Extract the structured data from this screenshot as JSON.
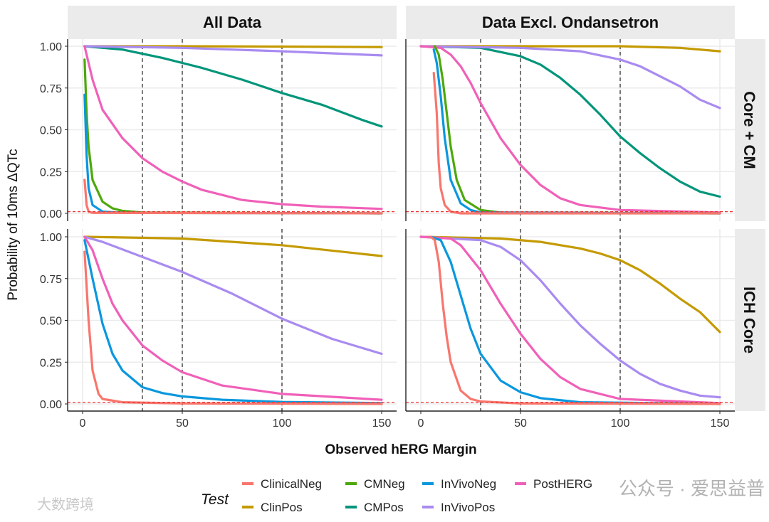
{
  "chart_data": {
    "type": "line",
    "xlabel": "Observed hERG Margin",
    "ylabel": "Probability of 10ms ΔQTc",
    "xlim": [
      0,
      150
    ],
    "ylim": [
      0,
      1
    ],
    "x_ticks": [
      "0",
      "50",
      "100",
      "150"
    ],
    "x_tick_values": [
      0,
      50,
      100,
      150
    ],
    "y_ticks": [
      "0.00",
      "0.25",
      "0.50",
      "0.75",
      "1.00"
    ],
    "y_tick_values": [
      0,
      0.25,
      0.5,
      0.75,
      1
    ],
    "vlines": [
      30,
      50,
      100
    ],
    "hline": 0.01,
    "grid": true,
    "column_labels": [
      "All Data",
      "Data Excl. Ondansetron"
    ],
    "row_labels": [
      "Core + CM",
      "ICH Core"
    ],
    "legend": {
      "title": "Test",
      "placement": "bottom",
      "entries": [
        "ClinicalNeg",
        "ClinPos",
        "CMNeg",
        "CMPos",
        "InVivoNeg",
        "InVivoPos",
        "PostHERG"
      ]
    },
    "colors": {
      "ClinicalNeg": "#F8766D",
      "ClinPos": "#C49A00",
      "CMNeg": "#4DA80C",
      "CMPos": "#00957A",
      "InVivoNeg": "#0A97DE",
      "InVivoPos": "#A98BF0",
      "PostHERG": "#F060B8"
    },
    "panels": [
      {
        "row": 0,
        "col": 0,
        "series": {
          "ClinPos": [
            [
              1,
              1
            ],
            [
              50,
              1
            ],
            [
              100,
              0.998
            ],
            [
              150,
              0.995
            ]
          ],
          "CMPos": [
            [
              1,
              1
            ],
            [
              20,
              0.98
            ],
            [
              40,
              0.93
            ],
            [
              50,
              0.9
            ],
            [
              60,
              0.87
            ],
            [
              80,
              0.8
            ],
            [
              100,
              0.72
            ],
            [
              120,
              0.65
            ],
            [
              140,
              0.56
            ],
            [
              150,
              0.52
            ]
          ],
          "InVivoPos": [
            [
              1,
              1
            ],
            [
              50,
              0.99
            ],
            [
              100,
              0.97
            ],
            [
              150,
              0.945
            ]
          ],
          "PostHERG": [
            [
              1,
              1
            ],
            [
              5,
              0.8
            ],
            [
              10,
              0.62
            ],
            [
              20,
              0.45
            ],
            [
              30,
              0.33
            ],
            [
              40,
              0.25
            ],
            [
              50,
              0.19
            ],
            [
              60,
              0.14
            ],
            [
              80,
              0.08
            ],
            [
              100,
              0.055
            ],
            [
              120,
              0.04
            ],
            [
              150,
              0.027
            ]
          ],
          "CMNeg": [
            [
              1,
              0.92
            ],
            [
              2,
              0.6
            ],
            [
              3,
              0.4
            ],
            [
              5,
              0.2
            ],
            [
              10,
              0.07
            ],
            [
              15,
              0.03
            ],
            [
              20,
              0.015
            ],
            [
              30,
              0.005
            ],
            [
              150,
              0
            ]
          ],
          "InVivoNeg": [
            [
              1,
              0.71
            ],
            [
              2,
              0.35
            ],
            [
              3,
              0.15
            ],
            [
              5,
              0.05
            ],
            [
              10,
              0.01
            ],
            [
              20,
              0.003
            ],
            [
              150,
              0
            ]
          ],
          "ClinicalNeg": [
            [
              1,
              0.2
            ],
            [
              2,
              0.05
            ],
            [
              3,
              0.01
            ],
            [
              5,
              0.003
            ],
            [
              150,
              0
            ]
          ]
        }
      },
      {
        "row": 0,
        "col": 1,
        "series": {
          "ClinPos": [
            [
              0,
              1
            ],
            [
              100,
              1
            ],
            [
              130,
              0.99
            ],
            [
              150,
              0.97
            ]
          ],
          "CMPos": [
            [
              0,
              1
            ],
            [
              30,
              0.99
            ],
            [
              50,
              0.94
            ],
            [
              60,
              0.89
            ],
            [
              70,
              0.81
            ],
            [
              80,
              0.71
            ],
            [
              90,
              0.59
            ],
            [
              100,
              0.46
            ],
            [
              110,
              0.36
            ],
            [
              120,
              0.27
            ],
            [
              130,
              0.19
            ],
            [
              140,
              0.13
            ],
            [
              150,
              0.1
            ]
          ],
          "InVivoPos": [
            [
              0,
              1
            ],
            [
              50,
              0.99
            ],
            [
              80,
              0.97
            ],
            [
              100,
              0.92
            ],
            [
              110,
              0.88
            ],
            [
              120,
              0.82
            ],
            [
              130,
              0.76
            ],
            [
              140,
              0.68
            ],
            [
              150,
              0.63
            ]
          ],
          "PostHERG": [
            [
              0,
              1
            ],
            [
              10,
              0.99
            ],
            [
              15,
              0.95
            ],
            [
              20,
              0.88
            ],
            [
              25,
              0.78
            ],
            [
              30,
              0.66
            ],
            [
              40,
              0.45
            ],
            [
              50,
              0.29
            ],
            [
              60,
              0.17
            ],
            [
              70,
              0.09
            ],
            [
              80,
              0.05
            ],
            [
              100,
              0.02
            ],
            [
              150,
              0.005
            ]
          ],
          "CMNeg": [
            [
              7,
              1
            ],
            [
              9,
              0.95
            ],
            [
              11,
              0.8
            ],
            [
              13,
              0.6
            ],
            [
              15,
              0.4
            ],
            [
              18,
              0.2
            ],
            [
              22,
              0.08
            ],
            [
              30,
              0.02
            ],
            [
              40,
              0.005
            ],
            [
              150,
              0
            ]
          ],
          "InVivoNeg": [
            [
              6.5,
              0.98
            ],
            [
              8,
              0.9
            ],
            [
              10,
              0.7
            ],
            [
              12,
              0.45
            ],
            [
              15,
              0.2
            ],
            [
              20,
              0.06
            ],
            [
              25,
              0.02
            ],
            [
              30,
              0.005
            ],
            [
              150,
              0
            ]
          ],
          "ClinicalNeg": [
            [
              6.5,
              0.84
            ],
            [
              8,
              0.6
            ],
            [
              9,
              0.3
            ],
            [
              10,
              0.15
            ],
            [
              12,
              0.05
            ],
            [
              15,
              0.01
            ],
            [
              20,
              0
            ],
            [
              150,
              0
            ]
          ]
        }
      },
      {
        "row": 1,
        "col": 0,
        "series": {
          "ClinPos": [
            [
              1,
              1
            ],
            [
              50,
              0.99
            ],
            [
              100,
              0.95
            ],
            [
              150,
              0.885
            ]
          ],
          "InVivoPos": [
            [
              1,
              1
            ],
            [
              10,
              0.97
            ],
            [
              30,
              0.88
            ],
            [
              50,
              0.79
            ],
            [
              75,
              0.66
            ],
            [
              100,
              0.51
            ],
            [
              125,
              0.39
            ],
            [
              150,
              0.3
            ]
          ],
          "PostHERG": [
            [
              1,
              1
            ],
            [
              5,
              0.92
            ],
            [
              10,
              0.75
            ],
            [
              15,
              0.6
            ],
            [
              20,
              0.5
            ],
            [
              30,
              0.35
            ],
            [
              40,
              0.26
            ],
            [
              50,
              0.19
            ],
            [
              70,
              0.11
            ],
            [
              100,
              0.06
            ],
            [
              150,
              0.025
            ]
          ],
          "InVivoNeg": [
            [
              1,
              0.98
            ],
            [
              5,
              0.75
            ],
            [
              10,
              0.48
            ],
            [
              15,
              0.3
            ],
            [
              20,
              0.2
            ],
            [
              30,
              0.1
            ],
            [
              40,
              0.065
            ],
            [
              50,
              0.045
            ],
            [
              70,
              0.025
            ],
            [
              100,
              0.012
            ],
            [
              150,
              0.005
            ]
          ],
          "ClinicalNeg": [
            [
              1,
              0.91
            ],
            [
              3,
              0.5
            ],
            [
              5,
              0.2
            ],
            [
              8,
              0.06
            ],
            [
              10,
              0.03
            ],
            [
              20,
              0.01
            ],
            [
              50,
              0.003
            ],
            [
              150,
              0
            ]
          ]
        }
      },
      {
        "row": 1,
        "col": 1,
        "series": {
          "ClinPos": [
            [
              0,
              1
            ],
            [
              40,
              0.99
            ],
            [
              60,
              0.97
            ],
            [
              80,
              0.93
            ],
            [
              90,
              0.9
            ],
            [
              100,
              0.86
            ],
            [
              110,
              0.8
            ],
            [
              120,
              0.72
            ],
            [
              130,
              0.63
            ],
            [
              140,
              0.55
            ],
            [
              150,
              0.43
            ]
          ],
          "InVivoPos": [
            [
              0,
              1
            ],
            [
              30,
              0.98
            ],
            [
              40,
              0.94
            ],
            [
              50,
              0.86
            ],
            [
              60,
              0.74
            ],
            [
              70,
              0.6
            ],
            [
              80,
              0.47
            ],
            [
              90,
              0.36
            ],
            [
              100,
              0.26
            ],
            [
              110,
              0.18
            ],
            [
              120,
              0.12
            ],
            [
              130,
              0.08
            ],
            [
              140,
              0.05
            ],
            [
              150,
              0.04
            ]
          ],
          "PostHERG": [
            [
              0,
              1
            ],
            [
              15,
              0.99
            ],
            [
              20,
              0.95
            ],
            [
              30,
              0.8
            ],
            [
              40,
              0.6
            ],
            [
              50,
              0.42
            ],
            [
              60,
              0.27
            ],
            [
              70,
              0.16
            ],
            [
              80,
              0.09
            ],
            [
              100,
              0.03
            ],
            [
              150,
              0.005
            ]
          ],
          "InVivoNeg": [
            [
              5,
              1
            ],
            [
              10,
              0.98
            ],
            [
              15,
              0.85
            ],
            [
              20,
              0.65
            ],
            [
              25,
              0.45
            ],
            [
              30,
              0.3
            ],
            [
              40,
              0.14
            ],
            [
              50,
              0.07
            ],
            [
              60,
              0.035
            ],
            [
              80,
              0.01
            ],
            [
              150,
              0
            ]
          ],
          "ClinicalNeg": [
            [
              5,
              1
            ],
            [
              7,
              0.98
            ],
            [
              9,
              0.85
            ],
            [
              11,
              0.6
            ],
            [
              13,
              0.4
            ],
            [
              15,
              0.25
            ],
            [
              20,
              0.08
            ],
            [
              25,
              0.03
            ],
            [
              30,
              0.015
            ],
            [
              50,
              0.003
            ],
            [
              150,
              0
            ]
          ]
        }
      }
    ]
  },
  "watermarks": [
    "公众号 · 爱思益普",
    "大数跨境"
  ]
}
